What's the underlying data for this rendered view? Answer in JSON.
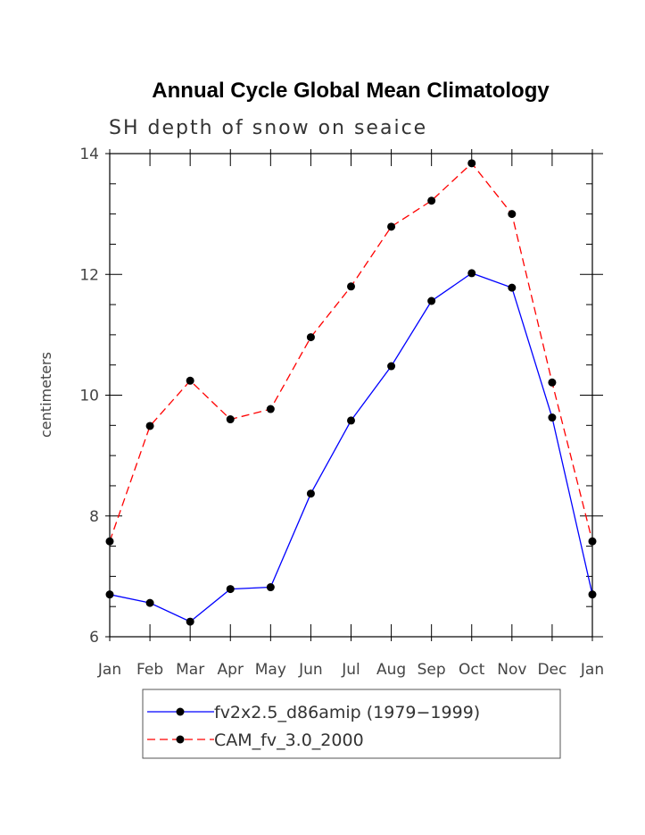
{
  "chart_data": {
    "type": "line",
    "title": "Annual Cycle Global Mean Climatology",
    "subtitle": "SH depth of snow on seaice",
    "xlabel": "",
    "ylabel": "centimeters",
    "categories": [
      "Jan",
      "Feb",
      "Mar",
      "Apr",
      "May",
      "Jun",
      "Jul",
      "Aug",
      "Sep",
      "Oct",
      "Nov",
      "Dec",
      "Jan"
    ],
    "ylim": [
      6,
      14
    ],
    "yticks": [
      6,
      8,
      10,
      12,
      14
    ],
    "series": [
      {
        "name": "fv2x2.5_d86amip (1979−1999)",
        "color": "#0000ff",
        "dash": "solid",
        "marker": "circle",
        "values": [
          6.7,
          6.56,
          6.25,
          6.79,
          6.82,
          8.37,
          9.58,
          10.48,
          11.56,
          12.02,
          11.78,
          9.63,
          6.7
        ]
      },
      {
        "name": "CAM_fv_3.0_2000",
        "color": "#ff0000",
        "dash": "dashed",
        "marker": "circle",
        "values": [
          7.58,
          9.49,
          10.24,
          9.6,
          9.77,
          10.96,
          11.8,
          12.79,
          13.22,
          13.84,
          13.0,
          10.21,
          7.58
        ]
      }
    ],
    "legend": "bottom"
  }
}
